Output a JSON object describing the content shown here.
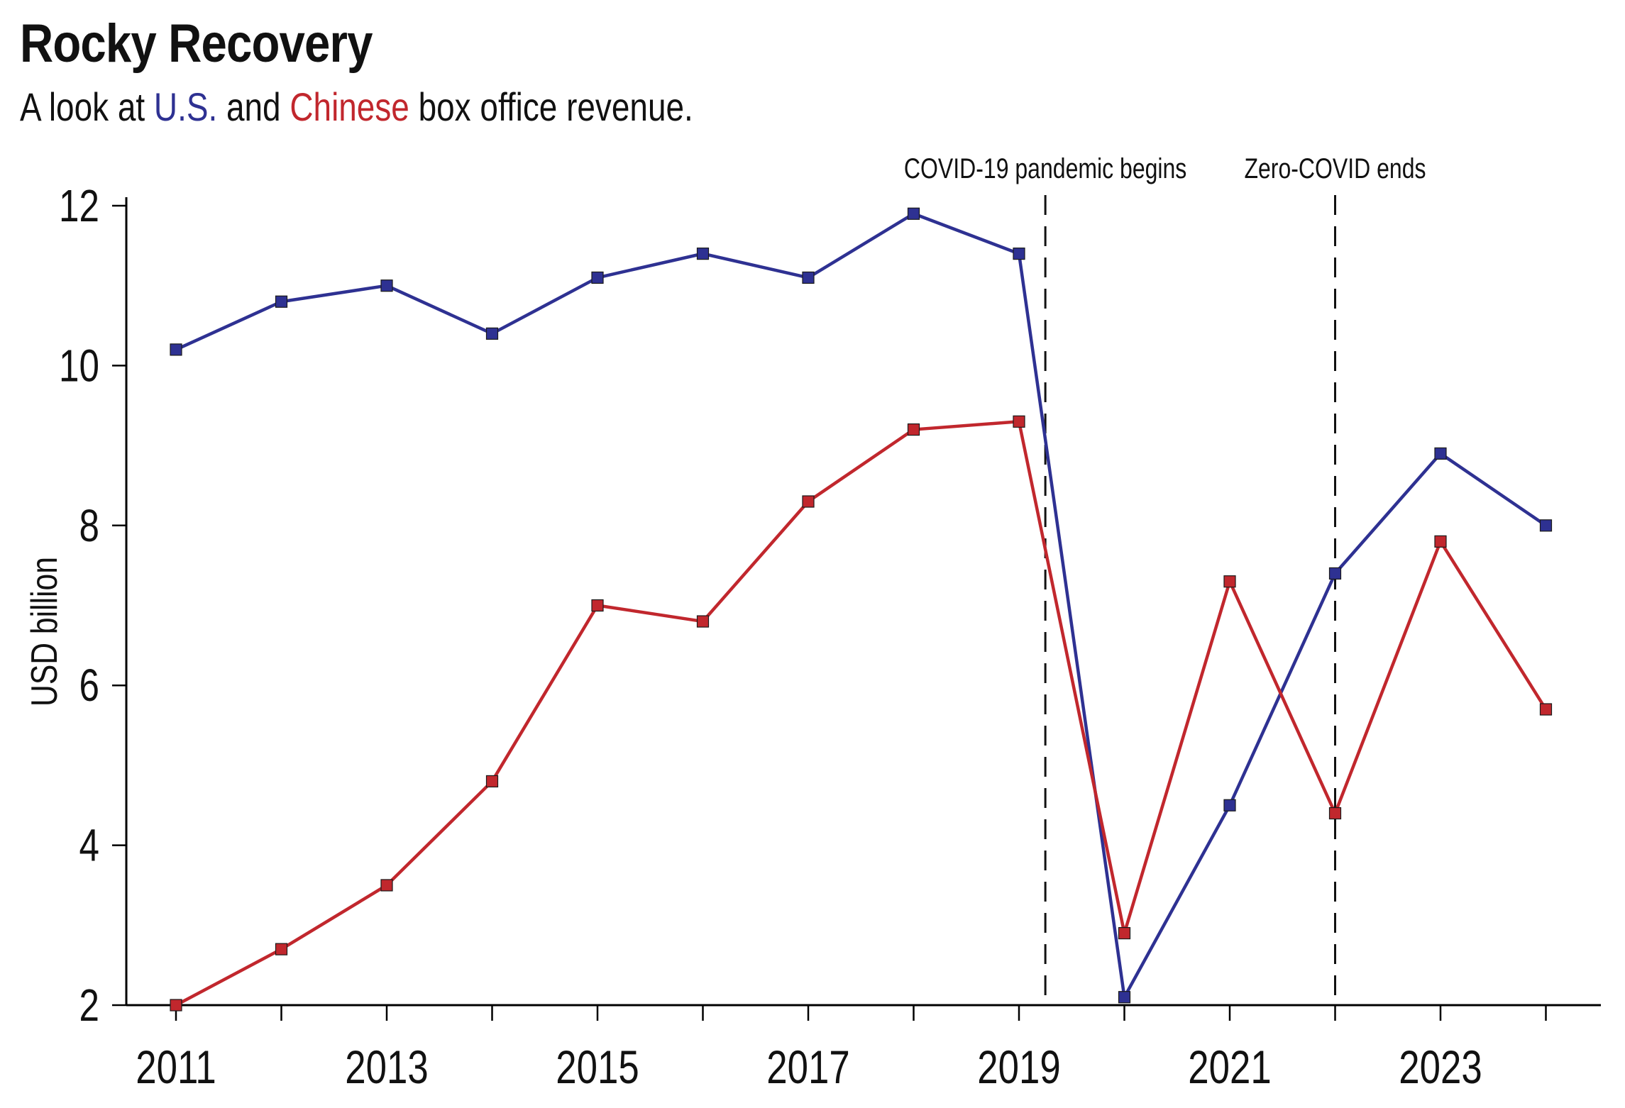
{
  "header": {
    "title": "Rocky Recovery",
    "subtitle_pre": "A look at ",
    "subtitle_us": "U.S.",
    "subtitle_mid": " and ",
    "subtitle_cn": "Chinese",
    "subtitle_post": " box office revenue."
  },
  "colors": {
    "us": "#2e3192",
    "china": "#c1272d",
    "axis": "#000000"
  },
  "chart_data": {
    "type": "line",
    "title": "Rocky Recovery",
    "subtitle": "A look at U.S. and Chinese box office revenue.",
    "xlabel": "",
    "ylabel": "USD billion",
    "x": [
      2011,
      2012,
      2013,
      2014,
      2015,
      2016,
      2017,
      2018,
      2019,
      2020,
      2021,
      2022,
      2023,
      2024
    ],
    "xlim": [
      2010.5,
      2024.5
    ],
    "ylim": [
      2,
      12
    ],
    "x_ticks": [
      2011,
      2012,
      2013,
      2014,
      2015,
      2016,
      2017,
      2018,
      2019,
      2020,
      2021,
      2022,
      2023,
      2024
    ],
    "x_tick_labels": [
      "2011",
      "2013",
      "2015",
      "2017",
      "2019",
      "2021",
      "2023"
    ],
    "y_ticks": [
      2,
      4,
      6,
      8,
      10,
      12
    ],
    "y_tick_labels": [
      "2",
      "4",
      "6",
      "8",
      "10",
      "12"
    ],
    "grid": false,
    "series": [
      {
        "name": "U.S.",
        "color": "#2e3192",
        "values": [
          10.2,
          10.8,
          11.0,
          10.4,
          11.1,
          11.4,
          11.1,
          11.9,
          11.4,
          2.1,
          4.5,
          7.4,
          8.9,
          8.0
        ]
      },
      {
        "name": "Chinese",
        "color": "#c1272d",
        "values": [
          2.0,
          2.7,
          3.5,
          4.8,
          7.0,
          6.8,
          8.3,
          9.2,
          9.3,
          2.9,
          7.3,
          4.4,
          7.8,
          5.7
        ]
      }
    ],
    "annotations": [
      {
        "text": "COVID-19 pandemic begins",
        "x": 2019.25,
        "style": "dashed-vline"
      },
      {
        "text": "Zero-COVID ends",
        "x": 2022.0,
        "style": "dashed-vline"
      }
    ]
  }
}
